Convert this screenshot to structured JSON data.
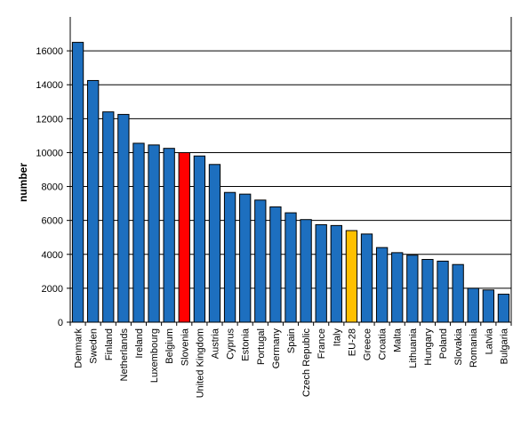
{
  "chart_data": {
    "type": "bar",
    "title": "",
    "xlabel": "",
    "ylabel": "number",
    "ylim": [
      0,
      18000
    ],
    "yticks": [
      0,
      2000,
      4000,
      6000,
      8000,
      10000,
      12000,
      14000,
      16000
    ],
    "grid": true,
    "categories": [
      "Denmark",
      "Sweden",
      "Finland",
      "Netherlands",
      "Ireland",
      "Luxembourg",
      "Belgium",
      "Slovenia",
      "United Kingdom",
      "Austria",
      "Cyprus",
      "Estonia",
      "Portugal",
      "Germany",
      "Spain",
      "Czech Republic",
      "France",
      "Italy",
      "EU-28",
      "Greece",
      "Croatia",
      "Malta",
      "Lithuania",
      "Hungary",
      "Poland",
      "Slovakia",
      "Romania",
      "Latvia",
      "Bulgaria"
    ],
    "values": [
      16500,
      14250,
      12400,
      12250,
      10550,
      10450,
      10250,
      10000,
      9800,
      9300,
      7650,
      7550,
      7200,
      6800,
      6450,
      6050,
      5750,
      5700,
      5400,
      5200,
      4400,
      4100,
      3950,
      3700,
      3600,
      3400,
      2000,
      1900,
      1650
    ],
    "colors": {
      "default": "#1d6fbf",
      "highlight": "#ff0000",
      "aggregate": "#ffc000"
    },
    "highlight_category": "Slovenia",
    "aggregate_category": "EU-28"
  }
}
